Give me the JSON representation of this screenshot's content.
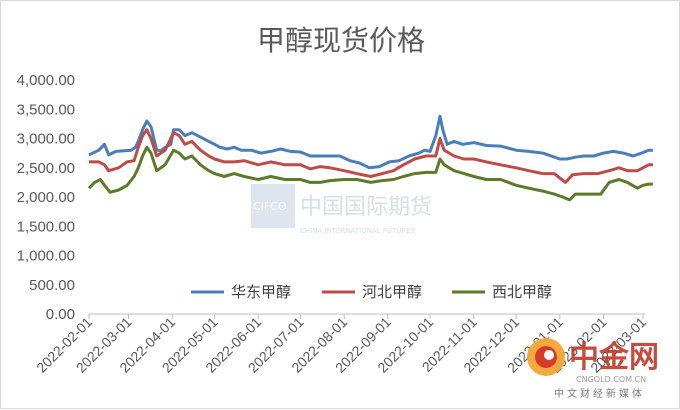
{
  "chart_data": {
    "type": "line",
    "title": "甲醇现货价格",
    "xlabel": "",
    "ylabel": "",
    "ylim": [
      0,
      4000
    ],
    "yticks": [
      "0.00",
      "500.00",
      "1,000.00",
      "1,500.00",
      "2,000.00",
      "2,500.00",
      "3,000.00",
      "3,500.00",
      "4,000.00"
    ],
    "xticks": [
      "2022-02-01",
      "2022-03-01",
      "2022-04-01",
      "2022-05-01",
      "2022-06-01",
      "2022-07-01",
      "2022-08-01",
      "2022-09-01",
      "2022-10-01",
      "2022-11-01",
      "2022-12-01",
      "2023-01-01",
      "2023-02-01",
      "2023-03-01"
    ],
    "grid": false,
    "legend_position": "bottom",
    "series": [
      {
        "name": "华东甲醇",
        "color": "#4a7ebb",
        "points": [
          [
            "2022-02-01",
            2720
          ],
          [
            "2022-02-08",
            2800
          ],
          [
            "2022-02-12",
            2900
          ],
          [
            "2022-02-15",
            2720
          ],
          [
            "2022-02-20",
            2780
          ],
          [
            "2022-02-26",
            2790
          ],
          [
            "2022-03-03",
            2800
          ],
          [
            "2022-03-06",
            2850
          ],
          [
            "2022-03-08",
            2950
          ],
          [
            "2022-03-11",
            3150
          ],
          [
            "2022-03-14",
            3300
          ],
          [
            "2022-03-17",
            3200
          ],
          [
            "2022-03-21",
            2800
          ],
          [
            "2022-03-24",
            2790
          ],
          [
            "2022-03-27",
            2850
          ],
          [
            "2022-03-31",
            2900
          ],
          [
            "2022-04-02",
            3150
          ],
          [
            "2022-04-06",
            3150
          ],
          [
            "2022-04-10",
            3050
          ],
          [
            "2022-04-15",
            3100
          ],
          [
            "2022-04-19",
            3050
          ],
          [
            "2022-04-23",
            3000
          ],
          [
            "2022-04-27",
            2950
          ],
          [
            "2022-05-01",
            2900
          ],
          [
            "2022-05-05",
            2850
          ],
          [
            "2022-05-10",
            2820
          ],
          [
            "2022-05-15",
            2850
          ],
          [
            "2022-05-20",
            2800
          ],
          [
            "2022-05-27",
            2800
          ],
          [
            "2022-06-03",
            2750
          ],
          [
            "2022-06-10",
            2780
          ],
          [
            "2022-06-17",
            2820
          ],
          [
            "2022-06-24",
            2780
          ],
          [
            "2022-07-01",
            2770
          ],
          [
            "2022-07-08",
            2700
          ],
          [
            "2022-07-15",
            2700
          ],
          [
            "2022-07-22",
            2700
          ],
          [
            "2022-07-29",
            2700
          ],
          [
            "2022-08-05",
            2620
          ],
          [
            "2022-08-12",
            2580
          ],
          [
            "2022-08-19",
            2500
          ],
          [
            "2022-08-26",
            2520
          ],
          [
            "2022-09-02",
            2600
          ],
          [
            "2022-09-09",
            2620
          ],
          [
            "2022-09-16",
            2700
          ],
          [
            "2022-09-23",
            2750
          ],
          [
            "2022-09-27",
            2800
          ],
          [
            "2022-10-01",
            2780
          ],
          [
            "2022-10-05",
            3050
          ],
          [
            "2022-10-08",
            3380
          ],
          [
            "2022-10-10",
            3150
          ],
          [
            "2022-10-13",
            2900
          ],
          [
            "2022-10-18",
            2950
          ],
          [
            "2022-10-24",
            2900
          ],
          [
            "2022-11-01",
            2930
          ],
          [
            "2022-11-10",
            2880
          ],
          [
            "2022-11-20",
            2870
          ],
          [
            "2022-12-01",
            2800
          ],
          [
            "2022-12-10",
            2780
          ],
          [
            "2022-12-20",
            2750
          ],
          [
            "2023-01-01",
            2650
          ],
          [
            "2023-01-06",
            2650
          ],
          [
            "2023-01-12",
            2680
          ],
          [
            "2023-01-18",
            2700
          ],
          [
            "2023-01-25",
            2700
          ],
          [
            "2023-02-01",
            2750
          ],
          [
            "2023-02-08",
            2780
          ],
          [
            "2023-02-15",
            2750
          ],
          [
            "2023-02-22",
            2700
          ],
          [
            "2023-02-28",
            2750
          ],
          [
            "2023-03-05",
            2800
          ],
          [
            "2023-03-08",
            2800
          ]
        ]
      },
      {
        "name": "河北甲醇",
        "color": "#be4b48",
        "points": [
          [
            "2022-02-01",
            2600
          ],
          [
            "2022-02-08",
            2600
          ],
          [
            "2022-02-12",
            2550
          ],
          [
            "2022-02-15",
            2450
          ],
          [
            "2022-02-22",
            2500
          ],
          [
            "2022-02-28",
            2600
          ],
          [
            "2022-03-05",
            2620
          ],
          [
            "2022-03-08",
            2850
          ],
          [
            "2022-03-11",
            3050
          ],
          [
            "2022-03-14",
            3150
          ],
          [
            "2022-03-17",
            3000
          ],
          [
            "2022-03-21",
            2700
          ],
          [
            "2022-03-27",
            2800
          ],
          [
            "2022-04-02",
            3100
          ],
          [
            "2022-04-06",
            3050
          ],
          [
            "2022-04-10",
            2900
          ],
          [
            "2022-04-15",
            2950
          ],
          [
            "2022-04-21",
            2800
          ],
          [
            "2022-04-27",
            2700
          ],
          [
            "2022-05-01",
            2650
          ],
          [
            "2022-05-08",
            2600
          ],
          [
            "2022-05-15",
            2600
          ],
          [
            "2022-05-22",
            2620
          ],
          [
            "2022-06-01",
            2550
          ],
          [
            "2022-06-10",
            2600
          ],
          [
            "2022-06-20",
            2550
          ],
          [
            "2022-07-01",
            2550
          ],
          [
            "2022-07-08",
            2480
          ],
          [
            "2022-07-15",
            2520
          ],
          [
            "2022-07-22",
            2500
          ],
          [
            "2022-08-01",
            2450
          ],
          [
            "2022-08-10",
            2400
          ],
          [
            "2022-08-20",
            2350
          ],
          [
            "2022-08-28",
            2400
          ],
          [
            "2022-09-05",
            2450
          ],
          [
            "2022-09-12",
            2550
          ],
          [
            "2022-09-20",
            2650
          ],
          [
            "2022-09-28",
            2700
          ],
          [
            "2022-10-05",
            2700
          ],
          [
            "2022-10-08",
            3000
          ],
          [
            "2022-10-11",
            2800
          ],
          [
            "2022-10-18",
            2700
          ],
          [
            "2022-10-25",
            2650
          ],
          [
            "2022-11-01",
            2650
          ],
          [
            "2022-11-10",
            2600
          ],
          [
            "2022-11-20",
            2550
          ],
          [
            "2022-12-01",
            2500
          ],
          [
            "2022-12-10",
            2450
          ],
          [
            "2022-12-20",
            2400
          ],
          [
            "2022-12-28",
            2400
          ],
          [
            "2023-01-05",
            2250
          ],
          [
            "2023-01-10",
            2380
          ],
          [
            "2023-01-18",
            2400
          ],
          [
            "2023-01-28",
            2400
          ],
          [
            "2023-02-05",
            2450
          ],
          [
            "2023-02-12",
            2500
          ],
          [
            "2023-02-18",
            2450
          ],
          [
            "2023-02-25",
            2450
          ],
          [
            "2023-03-01",
            2500
          ],
          [
            "2023-03-05",
            2550
          ],
          [
            "2023-03-08",
            2550
          ]
        ]
      },
      {
        "name": "西北甲醇",
        "color": "#5b7a2a",
        "points": [
          [
            "2022-02-01",
            2150
          ],
          [
            "2022-02-05",
            2250
          ],
          [
            "2022-02-09",
            2300
          ],
          [
            "2022-02-12",
            2200
          ],
          [
            "2022-02-16",
            2080
          ],
          [
            "2022-02-22",
            2120
          ],
          [
            "2022-02-28",
            2200
          ],
          [
            "2022-03-05",
            2350
          ],
          [
            "2022-03-08",
            2500
          ],
          [
            "2022-03-11",
            2700
          ],
          [
            "2022-03-14",
            2850
          ],
          [
            "2022-03-17",
            2750
          ],
          [
            "2022-03-21",
            2450
          ],
          [
            "2022-03-27",
            2550
          ],
          [
            "2022-04-02",
            2800
          ],
          [
            "2022-04-06",
            2750
          ],
          [
            "2022-04-10",
            2650
          ],
          [
            "2022-04-15",
            2700
          ],
          [
            "2022-04-21",
            2550
          ],
          [
            "2022-04-27",
            2450
          ],
          [
            "2022-05-01",
            2400
          ],
          [
            "2022-05-08",
            2350
          ],
          [
            "2022-05-15",
            2400
          ],
          [
            "2022-05-22",
            2350
          ],
          [
            "2022-06-01",
            2300
          ],
          [
            "2022-06-10",
            2350
          ],
          [
            "2022-06-20",
            2300
          ],
          [
            "2022-07-01",
            2300
          ],
          [
            "2022-07-08",
            2250
          ],
          [
            "2022-07-15",
            2250
          ],
          [
            "2022-07-22",
            2280
          ],
          [
            "2022-08-01",
            2300
          ],
          [
            "2022-08-10",
            2300
          ],
          [
            "2022-08-20",
            2250
          ],
          [
            "2022-08-28",
            2280
          ],
          [
            "2022-09-05",
            2300
          ],
          [
            "2022-09-12",
            2350
          ],
          [
            "2022-09-20",
            2400
          ],
          [
            "2022-09-28",
            2420
          ],
          [
            "2022-10-05",
            2420
          ],
          [
            "2022-10-08",
            2650
          ],
          [
            "2022-10-11",
            2550
          ],
          [
            "2022-10-18",
            2450
          ],
          [
            "2022-10-25",
            2400
          ],
          [
            "2022-11-01",
            2350
          ],
          [
            "2022-11-10",
            2300
          ],
          [
            "2022-11-20",
            2300
          ],
          [
            "2022-12-01",
            2200
          ],
          [
            "2022-12-10",
            2150
          ],
          [
            "2022-12-20",
            2100
          ],
          [
            "2022-12-28",
            2050
          ],
          [
            "2023-01-03",
            2000
          ],
          [
            "2023-01-08",
            1950
          ],
          [
            "2023-01-12",
            2050
          ],
          [
            "2023-01-20",
            2050
          ],
          [
            "2023-01-30",
            2050
          ],
          [
            "2023-02-05",
            2250
          ],
          [
            "2023-02-12",
            2300
          ],
          [
            "2023-02-18",
            2250
          ],
          [
            "2023-02-25",
            2150
          ],
          [
            "2023-03-01",
            2200
          ],
          [
            "2023-03-05",
            2220
          ],
          [
            "2023-03-08",
            2220
          ]
        ]
      }
    ]
  },
  "watermark_cfe": {
    "main": "中国国际期货",
    "latin": "CIFCO",
    "sub": "CHINA INTERNATIONAL FUTURES"
  },
  "watermark_cngold": {
    "main": "中金网",
    "url": "CNGOLD.COM.CN",
    "sub": "中文财经新媒体"
  }
}
